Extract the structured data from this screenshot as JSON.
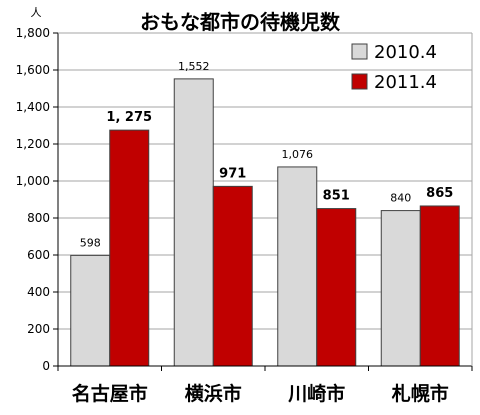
{
  "chart_data": {
    "type": "bar",
    "title": "おもな都市の待機児数",
    "ylabel": "人",
    "xlabel": "",
    "categories": [
      "名古屋市",
      "横浜市",
      "川崎市",
      "札幌市"
    ],
    "series": [
      {
        "name": "2010.4",
        "color": "#d9d9d9",
        "values": [
          598,
          1552,
          1076,
          840
        ],
        "labels": [
          "598",
          "1,552",
          "1,076",
          "840"
        ]
      },
      {
        "name": "2011.4",
        "color": "#c00000",
        "values": [
          1275,
          971,
          851,
          865
        ],
        "labels": [
          "1, 275",
          "971",
          "851",
          "865"
        ]
      }
    ],
    "ylim": [
      0,
      1800
    ],
    "yticks": [
      0,
      200,
      400,
      600,
      800,
      1000,
      1200,
      1400,
      1600,
      1800
    ],
    "ytick_labels": [
      "0",
      "200",
      "400",
      "600",
      "800",
      "1,000",
      "1,200",
      "1,400",
      "1,600",
      "1,800"
    ],
    "grid": true,
    "legend_position": "top-right"
  }
}
